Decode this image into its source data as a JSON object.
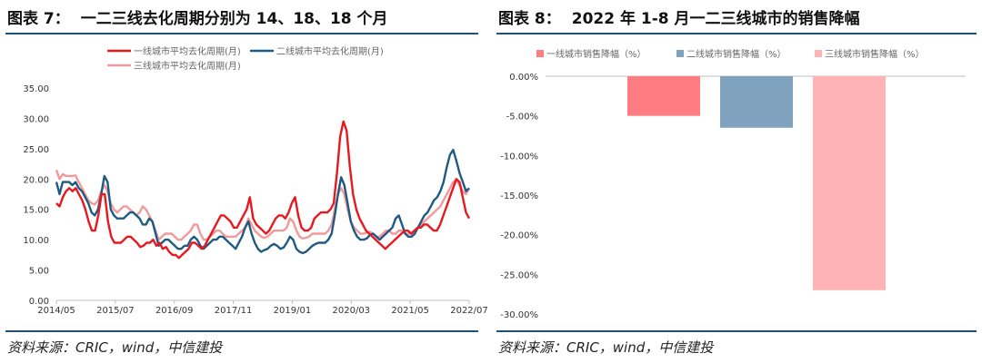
{
  "left": {
    "figure_label": "图表 7：",
    "title": "一二三线去化周期分别为 14、18、18 个月",
    "source": "资料来源：CRIC，wind，中信建投"
  },
  "right": {
    "figure_label": "图表 8：",
    "title": "2022 年 1-8 月一二三线城市的销售降幅",
    "source": "资料来源：CRIC，wind，中信建投"
  },
  "colors": {
    "rule": "#1f4e79",
    "tier1": "#e8191e",
    "tier2": "#1f5a85",
    "tier3": "#f29a9a",
    "bar1": "#ff7c80",
    "bar2": "#7fa3bf",
    "bar3": "#ffb3b5"
  },
  "chart_data": [
    {
      "type": "line",
      "x_ticks": [
        "2014/05",
        "2015/07",
        "2016/09",
        "2017/11",
        "2019/01",
        "2020/03",
        "2021/05",
        "2022/07"
      ],
      "x_start": "2014/05",
      "x_end": "2022/07",
      "ylim": [
        0,
        35
      ],
      "y_ticks": [
        "0.00",
        "5.00",
        "10.00",
        "15.00",
        "20.00",
        "25.00",
        "30.00",
        "35.00"
      ],
      "legend_position": "top",
      "grid": false,
      "series": [
        {
          "name": "一线城市平均去化周期(月)",
          "values": [
            16,
            15.5,
            17,
            18,
            18.5,
            18,
            18.5,
            17.5,
            16.5,
            15,
            13,
            11.5,
            11.5,
            14,
            17.5,
            17.5,
            13,
            10.5,
            9.5,
            9.5,
            9.5,
            10,
            10.5,
            10.5,
            10,
            9.5,
            8.8,
            9,
            9.5,
            9.5,
            10,
            9,
            9.5,
            8.5,
            8.8,
            8,
            7.5,
            7.5,
            7,
            7.5,
            8,
            8.5,
            9.5,
            9.5,
            9,
            8.5,
            9,
            10,
            11,
            12,
            13,
            14,
            14,
            13.5,
            13,
            12,
            12,
            13,
            14,
            15,
            17,
            13.5,
            12.5,
            12,
            11.5,
            11,
            11.5,
            12.5,
            13.5,
            14,
            14,
            13.5,
            14.5,
            16,
            17,
            14,
            12,
            11.5,
            11.5,
            12,
            13.5,
            14,
            14.5,
            14.5,
            14.5,
            15,
            16,
            21,
            27,
            29.5,
            28,
            22,
            17.5,
            15,
            13.5,
            12.5,
            11.5,
            11,
            10.5,
            10,
            9.5,
            9,
            8.5,
            9,
            9.5,
            10,
            10.5,
            11,
            11.5,
            11.5,
            11,
            11.5,
            12,
            12,
            12.5,
            12.5,
            12,
            11.5,
            11.5,
            12.5,
            14,
            15.5,
            17,
            18.5,
            20,
            19.5,
            17,
            14.5,
            13.5
          ]
        },
        {
          "name": "二线城市平均去化周期(月)",
          "values": [
            19.5,
            17.5,
            19.5,
            19.5,
            19.5,
            19,
            19.5,
            18.5,
            18,
            17,
            16,
            14.5,
            14,
            15,
            17.5,
            20.5,
            19.5,
            15,
            14,
            13.5,
            13.5,
            13.5,
            14,
            14.5,
            14.5,
            14,
            13.5,
            12.5,
            12.5,
            13.5,
            13,
            11,
            9,
            9.5,
            10,
            10,
            9.5,
            9,
            8.5,
            8.5,
            9,
            9,
            10,
            10.5,
            10,
            9,
            8.5,
            9,
            9.5,
            10,
            10,
            10.5,
            10.5,
            10,
            9.5,
            9,
            8.5,
            9.5,
            10.5,
            12,
            13,
            11,
            9.5,
            8.5,
            8,
            8.3,
            8.5,
            9,
            9.3,
            9,
            8.5,
            8.7,
            9.5,
            10.5,
            10,
            8.5,
            8,
            7.8,
            8,
            8.5,
            9,
            9.3,
            9.5,
            9.5,
            9.5,
            10,
            11,
            14,
            17.5,
            20.3,
            19,
            16,
            13,
            11.5,
            10.5,
            10,
            10,
            10.2,
            10.8,
            11,
            10.5,
            10,
            10.5,
            11,
            11.5,
            12,
            13.5,
            14,
            12.5,
            11,
            10.5,
            10.5,
            11,
            12,
            13,
            14,
            14.5,
            15.5,
            16.5,
            17,
            18,
            19.5,
            22,
            24,
            24.8,
            23,
            21,
            19.5,
            18,
            18.5
          ]
        },
        {
          "name": "三线城市平均去化周期(月)",
          "values": [
            21.5,
            20,
            20.8,
            20.5,
            20.5,
            20.5,
            20.6,
            19.5,
            18.5,
            17.5,
            16.5,
            16,
            15.8,
            16.5,
            18,
            19,
            18,
            16,
            15,
            14.5,
            15,
            15.5,
            15.5,
            15,
            14.5,
            14,
            14.5,
            15.5,
            15,
            14,
            13,
            11.5,
            10,
            10.5,
            11,
            11,
            11,
            10.5,
            10,
            10,
            10.5,
            11,
            11.5,
            12.5,
            12.5,
            11,
            10,
            10,
            10.5,
            11,
            11.5,
            11.5,
            11,
            10.5,
            10.5,
            10.5,
            10.5,
            11,
            11.5,
            12,
            13.5,
            12.5,
            11.5,
            11,
            10.5,
            10.3,
            10.5,
            11,
            11.5,
            11.5,
            11.5,
            11.5,
            12,
            13.5,
            13,
            11.5,
            10.5,
            10.2,
            10.3,
            10.5,
            11,
            11,
            11,
            11,
            11,
            11.5,
            12.5,
            15,
            17.5,
            18.5,
            17.5,
            15,
            13,
            12,
            11.5,
            11,
            11,
            11.2,
            11.3,
            11,
            10.5,
            10.5,
            11,
            11.5,
            11.5,
            11,
            11,
            11.5,
            11.5,
            11,
            11,
            11,
            11.5,
            12,
            12.5,
            13,
            13.5,
            14,
            14.5,
            15,
            15.5,
            16.5,
            17.5,
            18.5,
            19.5,
            19.8,
            19,
            18,
            17.5,
            18.5
          ]
        }
      ]
    },
    {
      "type": "bar",
      "ylim": [
        -30,
        0
      ],
      "y_ticks": [
        "0.00%",
        "-5.00%",
        "-10.00%",
        "-15.00%",
        "-20.00%",
        "-25.00%",
        "-30.00%"
      ],
      "legend_position": "top",
      "grid": false,
      "series": [
        {
          "name": "一线城市销售降幅（%）",
          "values": [
            -5.0
          ]
        },
        {
          "name": "二线城市销售降幅（%）",
          "values": [
            -6.5
          ]
        },
        {
          "name": "三线城市销售降幅（%）",
          "values": [
            -27.0
          ]
        }
      ]
    }
  ]
}
